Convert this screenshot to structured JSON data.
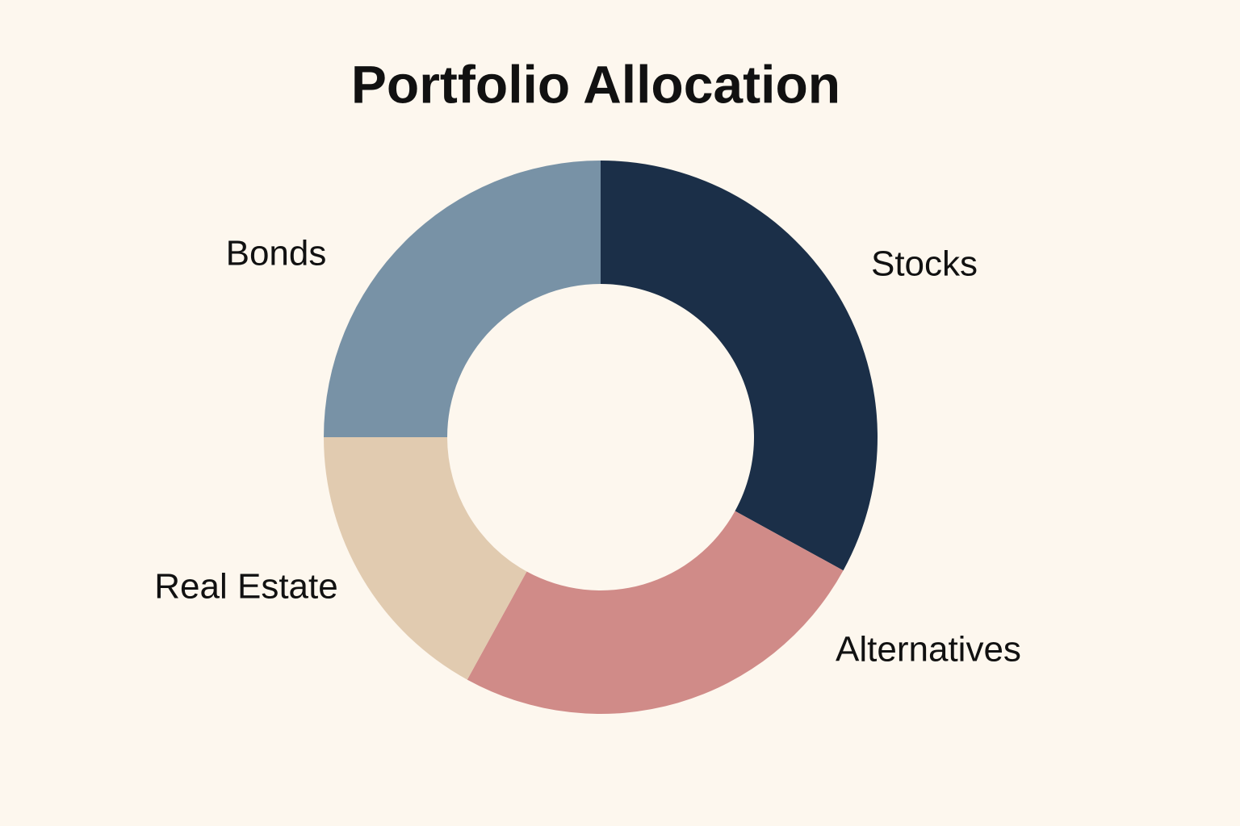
{
  "chart_data": {
    "type": "donut",
    "title": "Portfolio Allocation",
    "categories": [
      "Stocks",
      "Alternatives",
      "Real Estate",
      "Bonds"
    ],
    "values": [
      33,
      25,
      17,
      25
    ],
    "colors": [
      "#1b2f48",
      "#d08b88",
      "#e1cbb0",
      "#7892a6"
    ]
  }
}
